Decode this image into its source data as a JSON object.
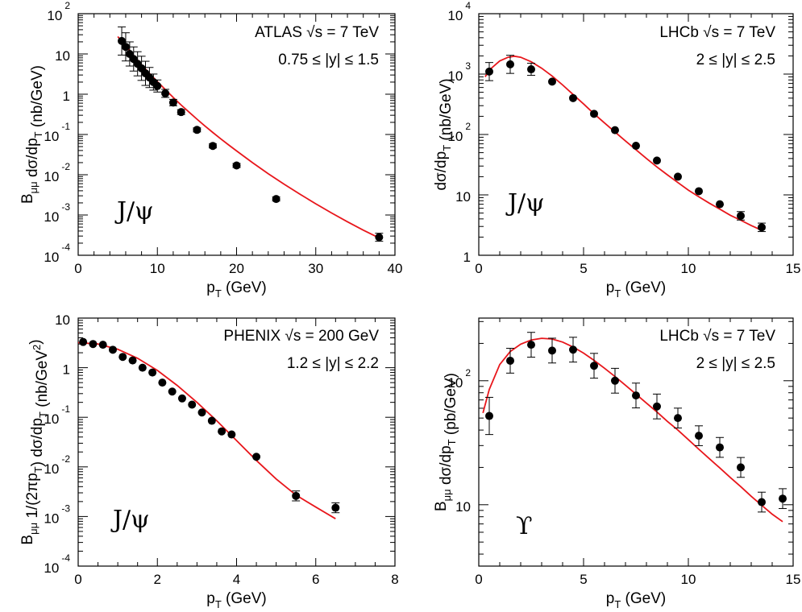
{
  "figure": {
    "description_colors": {
      "curve": "#e8161b",
      "points": "#000000",
      "frame": "#000000"
    }
  },
  "chart_data": [
    {
      "id": "atlas",
      "type": "scatter",
      "xlabel": "p_T (GeV)",
      "ylabel": "B_μμ dσ/dp_T (nb/GeV)",
      "xlim": [
        0,
        40
      ],
      "ylim": [
        0.0001,
        100
      ],
      "ylog": true,
      "x_ticks": [
        0,
        10,
        20,
        30,
        40
      ],
      "y_ticks": [
        {
          "m": "10",
          "e": "2"
        },
        {
          "m": "10",
          "e": ""
        },
        {
          "m": "1",
          "e": ""
        },
        {
          "m": "10",
          "e": "-1"
        },
        {
          "m": "10",
          "e": "-2"
        },
        {
          "m": "10",
          "e": "-3"
        },
        {
          "m": "10",
          "e": "-4"
        }
      ],
      "annotation_lines": [
        "ATLAS √s = 7 TeV",
        "0.75 ≤ |y| ≤ 1.5"
      ],
      "particle": "J/ψ",
      "points": [
        {
          "x": 5.5,
          "y": 21,
          "err": 0.35
        },
        {
          "x": 6.0,
          "y": 15,
          "err": 0.35
        },
        {
          "x": 6.5,
          "y": 10,
          "err": 0.3
        },
        {
          "x": 7.0,
          "y": 7.5,
          "err": 0.3
        },
        {
          "x": 7.5,
          "y": 5.7,
          "err": 0.3
        },
        {
          "x": 8.0,
          "y": 4.4,
          "err": 0.3
        },
        {
          "x": 8.5,
          "y": 3.3,
          "err": 0.3
        },
        {
          "x": 9.0,
          "y": 2.6,
          "err": 0.25
        },
        {
          "x": 9.5,
          "y": 2.0,
          "err": 0.2
        },
        {
          "x": 10.0,
          "y": 1.6,
          "err": 0.15
        },
        {
          "x": 11.0,
          "y": 1.05,
          "err": 0.1
        },
        {
          "x": 12.0,
          "y": 0.62,
          "err": 0.08
        },
        {
          "x": 13.0,
          "y": 0.36,
          "err": 0.06
        },
        {
          "x": 15.0,
          "y": 0.13,
          "err": 0.05
        },
        {
          "x": 17.0,
          "y": 0.052,
          "err": 0.05
        },
        {
          "x": 20.0,
          "y": 0.017,
          "err": 0.05
        },
        {
          "x": 25.0,
          "y": 0.0025,
          "err": 0.05
        },
        {
          "x": 38.0,
          "y": 0.00028,
          "err": 0.1
        }
      ],
      "curve": [
        [
          5.0,
          27
        ],
        [
          6,
          16
        ],
        [
          7,
          9.2
        ],
        [
          8,
          5.4
        ],
        [
          9,
          3.3
        ],
        [
          10,
          2.05
        ],
        [
          11,
          1.3
        ],
        [
          12,
          0.83
        ],
        [
          13,
          0.54
        ],
        [
          14,
          0.36
        ],
        [
          15,
          0.24
        ],
        [
          16,
          0.163
        ],
        [
          17,
          0.112
        ],
        [
          18,
          0.078
        ],
        [
          19,
          0.055
        ],
        [
          20,
          0.039
        ],
        [
          22,
          0.02
        ],
        [
          24,
          0.0106
        ],
        [
          26,
          0.0058
        ],
        [
          28,
          0.0033
        ],
        [
          30,
          0.0019
        ],
        [
          32,
          0.00112
        ],
        [
          34,
          0.00068
        ],
        [
          36,
          0.00042
        ],
        [
          38,
          0.00027
        ]
      ]
    },
    {
      "id": "lhcb-jpsi",
      "type": "scatter",
      "xlabel": "p_T (GeV)",
      "ylabel": "dσ/dp_T (nb/GeV)",
      "xlim": [
        0,
        15
      ],
      "ylim": [
        1,
        10000
      ],
      "ylog": true,
      "x_ticks": [
        0,
        5,
        10,
        15
      ],
      "y_ticks": [
        {
          "m": "10",
          "e": "4"
        },
        {
          "m": "10",
          "e": "3"
        },
        {
          "m": "10",
          "e": "2"
        },
        {
          "m": "10",
          "e": ""
        },
        {
          "m": "1",
          "e": ""
        }
      ],
      "annotation_lines": [
        "LHCb √s = 7 TeV",
        "2 ≤ |y| ≤ 2.5"
      ],
      "particle": "J/ψ",
      "points": [
        {
          "x": 0.5,
          "y": 1100,
          "err": 0.15
        },
        {
          "x": 1.5,
          "y": 1450,
          "err": 0.15
        },
        {
          "x": 2.5,
          "y": 1200,
          "err": 0.1
        },
        {
          "x": 3.5,
          "y": 750,
          "err": 0.0
        },
        {
          "x": 4.5,
          "y": 400,
          "err": 0.0
        },
        {
          "x": 5.5,
          "y": 220,
          "err": 0.0
        },
        {
          "x": 6.5,
          "y": 118,
          "err": 0.0
        },
        {
          "x": 7.5,
          "y": 65,
          "err": 0.0
        },
        {
          "x": 8.5,
          "y": 37,
          "err": 0.0
        },
        {
          "x": 9.5,
          "y": 20,
          "err": 0.0
        },
        {
          "x": 10.5,
          "y": 11.5,
          "err": 0.0
        },
        {
          "x": 11.5,
          "y": 7,
          "err": 0.0
        },
        {
          "x": 12.5,
          "y": 4.5,
          "err": 0.07
        },
        {
          "x": 13.5,
          "y": 2.9,
          "err": 0.07
        }
      ],
      "curve": [
        [
          0.3,
          900
        ],
        [
          0.6,
          1250
        ],
        [
          1.0,
          1650
        ],
        [
          1.4,
          1900
        ],
        [
          1.7,
          1980
        ],
        [
          2.0,
          1900
        ],
        [
          2.5,
          1600
        ],
        [
          3.0,
          1250
        ],
        [
          3.5,
          930
        ],
        [
          4.0,
          660
        ],
        [
          4.5,
          460
        ],
        [
          5.0,
          320
        ],
        [
          5.5,
          220
        ],
        [
          6.0,
          155
        ],
        [
          6.5,
          110
        ],
        [
          7.0,
          78
        ],
        [
          7.5,
          56
        ],
        [
          8.0,
          40
        ],
        [
          8.5,
          29
        ],
        [
          9.0,
          21.5
        ],
        [
          9.5,
          16
        ],
        [
          10.0,
          12
        ],
        [
          10.5,
          9.3
        ],
        [
          11.0,
          7.3
        ],
        [
          11.5,
          5.8
        ],
        [
          12.0,
          4.6
        ],
        [
          12.5,
          3.8
        ],
        [
          13.0,
          3.1
        ],
        [
          13.5,
          2.6
        ]
      ]
    },
    {
      "id": "phenix",
      "type": "scatter",
      "xlabel": "p_T (GeV)",
      "ylabel": "B_μμ 1/(2πp_T) dσ/dp_T (nb/GeV^2)",
      "xlim": [
        0,
        8
      ],
      "ylim": [
        0.0001,
        10
      ],
      "ylog": true,
      "x_ticks": [
        0,
        2,
        4,
        6,
        8
      ],
      "y_ticks": [
        {
          "m": "10",
          "e": ""
        },
        {
          "m": "1",
          "e": ""
        },
        {
          "m": "10",
          "e": "-1"
        },
        {
          "m": "10",
          "e": "-2"
        },
        {
          "m": "10",
          "e": "-3"
        },
        {
          "m": "10",
          "e": "-4"
        }
      ],
      "annotation_lines": [
        "PHENIX √s = 200 GeV",
        "1.2 ≤ |y| ≤ 2.2"
      ],
      "particle": "J/ψ",
      "points": [
        {
          "x": 0.125,
          "y": 3.3,
          "err": 0.0
        },
        {
          "x": 0.375,
          "y": 3.0,
          "err": 0.0
        },
        {
          "x": 0.625,
          "y": 2.9,
          "err": 0.0
        },
        {
          "x": 0.875,
          "y": 2.3,
          "err": 0.0
        },
        {
          "x": 1.125,
          "y": 1.65,
          "err": 0.0
        },
        {
          "x": 1.375,
          "y": 1.4,
          "err": 0.0
        },
        {
          "x": 1.625,
          "y": 1.0,
          "err": 0.0
        },
        {
          "x": 1.875,
          "y": 0.8,
          "err": 0.0
        },
        {
          "x": 2.125,
          "y": 0.5,
          "err": 0.0
        },
        {
          "x": 2.375,
          "y": 0.33,
          "err": 0.0
        },
        {
          "x": 2.625,
          "y": 0.24,
          "err": 0.0
        },
        {
          "x": 2.875,
          "y": 0.18,
          "err": 0.0
        },
        {
          "x": 3.125,
          "y": 0.125,
          "err": 0.0
        },
        {
          "x": 3.375,
          "y": 0.085,
          "err": 0.0
        },
        {
          "x": 3.625,
          "y": 0.052,
          "err": 0.0
        },
        {
          "x": 3.875,
          "y": 0.045,
          "err": 0.0
        },
        {
          "x": 4.5,
          "y": 0.016,
          "err": 0.0
        },
        {
          "x": 5.5,
          "y": 0.0026,
          "err": 0.1
        },
        {
          "x": 6.5,
          "y": 0.0015,
          "err": 0.1
        }
      ],
      "curve": [
        [
          0.0,
          3.2
        ],
        [
          0.5,
          3.0
        ],
        [
          1.0,
          2.35
        ],
        [
          1.5,
          1.55
        ],
        [
          2.0,
          0.88
        ],
        [
          2.5,
          0.44
        ],
        [
          3.0,
          0.2
        ],
        [
          3.5,
          0.085
        ],
        [
          4.0,
          0.034
        ],
        [
          4.5,
          0.0135
        ],
        [
          5.0,
          0.0057
        ],
        [
          5.5,
          0.0027
        ],
        [
          6.0,
          0.00155
        ],
        [
          6.5,
          0.0009
        ]
      ]
    },
    {
      "id": "lhcb-upsilon",
      "type": "scatter",
      "xlabel": "p_T (GeV)",
      "ylabel": "B_μμ dσ/dp_T (pb/GeV)",
      "xlim": [
        0,
        15
      ],
      "ylim": [
        3.2,
        320
      ],
      "ylog": true,
      "x_ticks": [
        0,
        5,
        10,
        15
      ],
      "y_ticks": [
        {
          "m": "10",
          "e": "2"
        },
        {
          "m": "10",
          "e": ""
        }
      ],
      "annotation_lines": [
        "LHCb √s = 7 TeV",
        "2 ≤ |y| ≤ 2.5"
      ],
      "particle": "ϒ",
      "points": [
        {
          "x": 0.5,
          "y": 52,
          "err": 0.15
        },
        {
          "x": 1.5,
          "y": 145,
          "err": 0.1
        },
        {
          "x": 2.5,
          "y": 195,
          "err": 0.1
        },
        {
          "x": 3.5,
          "y": 175,
          "err": 0.1
        },
        {
          "x": 4.5,
          "y": 178,
          "err": 0.1
        },
        {
          "x": 5.5,
          "y": 132,
          "err": 0.1
        },
        {
          "x": 6.5,
          "y": 100,
          "err": 0.1
        },
        {
          "x": 7.5,
          "y": 76,
          "err": 0.1
        },
        {
          "x": 8.5,
          "y": 62,
          "err": 0.1
        },
        {
          "x": 9.5,
          "y": 50,
          "err": 0.08
        },
        {
          "x": 10.5,
          "y": 36,
          "err": 0.08
        },
        {
          "x": 11.5,
          "y": 29,
          "err": 0.08
        },
        {
          "x": 12.5,
          "y": 20,
          "err": 0.08
        },
        {
          "x": 13.5,
          "y": 10.5,
          "err": 0.08
        },
        {
          "x": 14.5,
          "y": 11.2,
          "err": 0.08
        }
      ],
      "curve": [
        [
          0.2,
          55
        ],
        [
          0.5,
          85
        ],
        [
          1.0,
          135
        ],
        [
          1.5,
          172
        ],
        [
          2.0,
          197
        ],
        [
          2.5,
          213
        ],
        [
          3.0,
          220
        ],
        [
          3.5,
          217
        ],
        [
          4.0,
          205
        ],
        [
          4.5,
          187
        ],
        [
          5.0,
          167
        ],
        [
          5.5,
          146
        ],
        [
          6.0,
          126
        ],
        [
          6.5,
          108
        ],
        [
          7.0,
          92
        ],
        [
          7.5,
          78
        ],
        [
          8.0,
          66
        ],
        [
          8.5,
          56
        ],
        [
          9.0,
          47
        ],
        [
          9.5,
          40
        ],
        [
          10.0,
          33.5
        ],
        [
          10.5,
          28
        ],
        [
          11.0,
          23.5
        ],
        [
          11.5,
          19.8
        ],
        [
          12.0,
          16.6
        ],
        [
          12.5,
          14
        ],
        [
          13.0,
          11.7
        ],
        [
          13.5,
          9.9
        ],
        [
          14.0,
          8.4
        ],
        [
          14.5,
          7.3
        ]
      ]
    }
  ]
}
